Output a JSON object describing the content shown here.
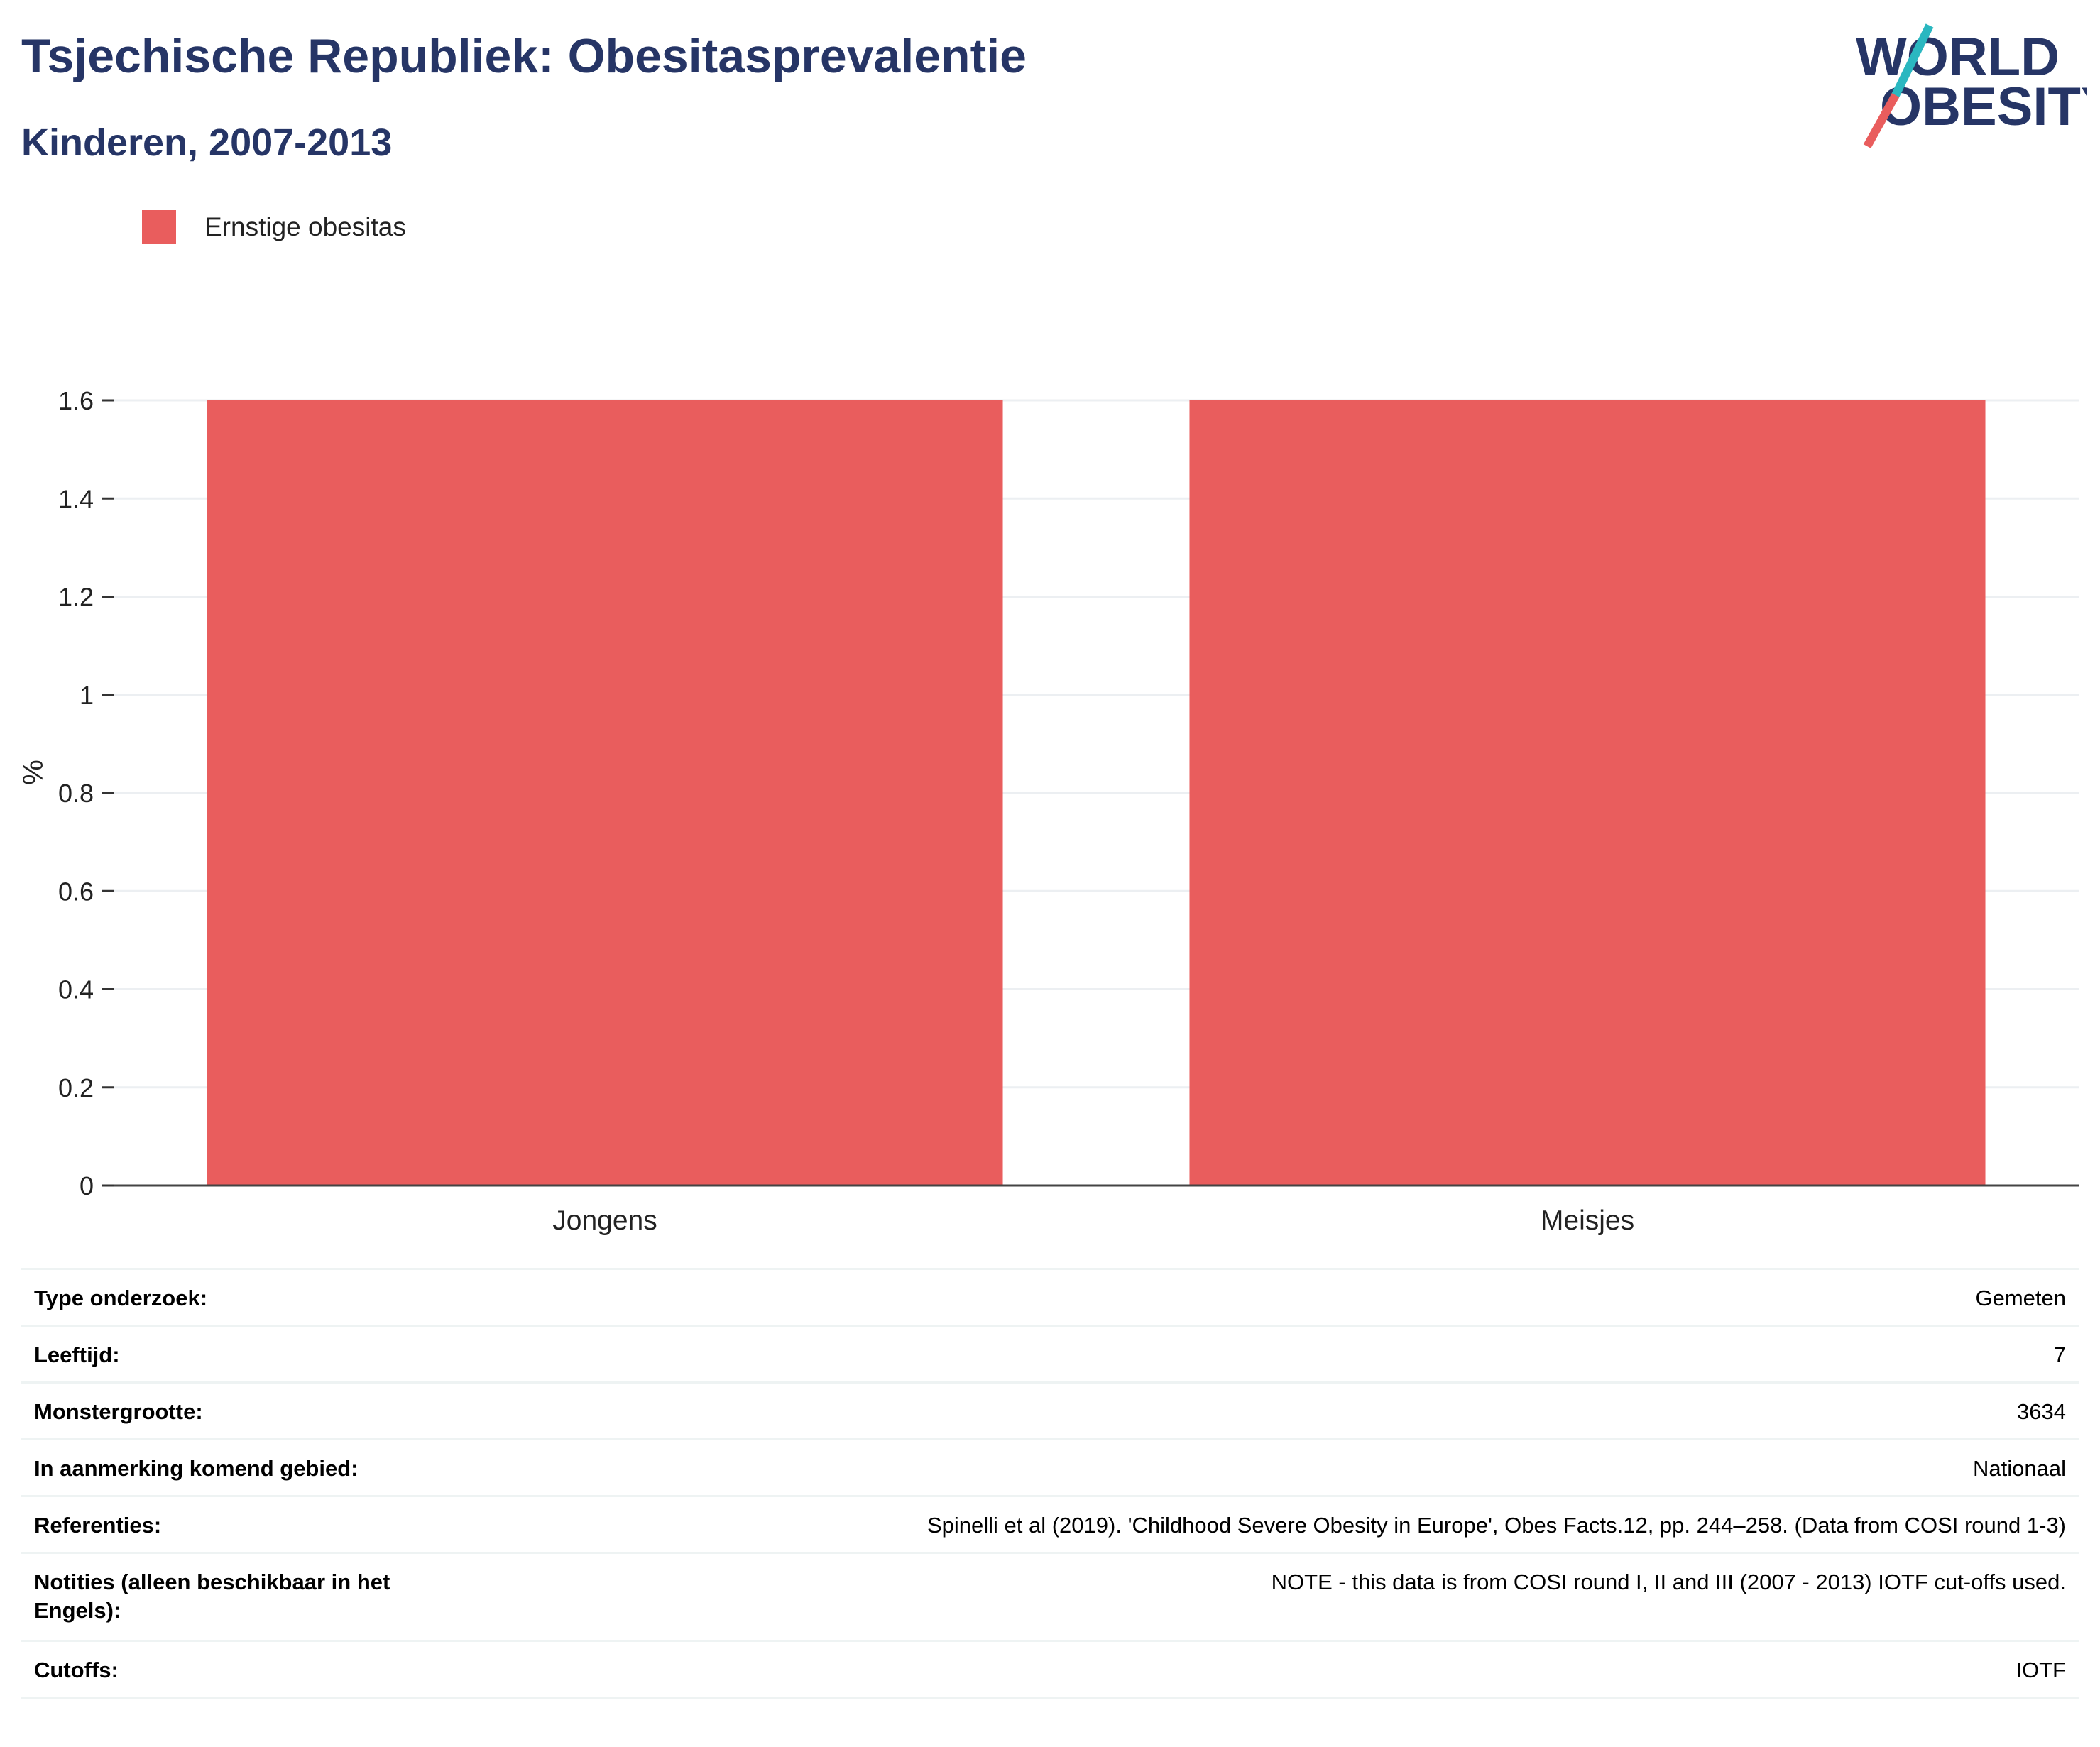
{
  "header": {
    "title": "Tsjechische Republiek: Obesitasprevalentie",
    "subtitle": "Kinderen, 2007-2013"
  },
  "logo": {
    "line1": "WORLD",
    "line2": "OBESITY",
    "accent_teal": "#2ab7c0",
    "accent_red": "#e95d5d",
    "text_color": "#263566"
  },
  "chart_data": {
    "type": "bar",
    "categories": [
      "Jongens",
      "Meisjes"
    ],
    "series": [
      {
        "name": "Ernstige obesitas",
        "values": [
          1.6,
          1.6
        ],
        "color": "#e95d5d"
      }
    ],
    "ylabel": "%",
    "ylim": [
      0,
      1.6
    ],
    "yticks": [
      0,
      0.2,
      0.4,
      0.6,
      0.8,
      1,
      1.2,
      1.4,
      1.6
    ],
    "ytick_labels": [
      "0",
      "0.2",
      "0.4",
      "0.6",
      "0.8",
      "1",
      "1.2",
      "1.4",
      "1.6"
    ],
    "grid": true,
    "legend_position": "top-left"
  },
  "info_table": [
    {
      "label": "Type onderzoek:",
      "value": "Gemeten"
    },
    {
      "label": "Leeftijd:",
      "value": "7"
    },
    {
      "label": "Monstergrootte:",
      "value": "3634"
    },
    {
      "label": "In aanmerking komend gebied:",
      "value": "Nationaal"
    },
    {
      "label": "Referenties:",
      "value": "Spinelli et al (2019). 'Childhood Severe Obesity in Europe', Obes Facts.12, pp. 244–258. (Data from COSI round 1-3)"
    },
    {
      "label": "Notities (alleen beschikbaar in het Engels):",
      "value": "NOTE - this data is from COSI round I, II and III (2007 - 2013) IOTF cut-offs used."
    },
    {
      "label": "Cutoffs:",
      "value": "IOTF"
    }
  ]
}
